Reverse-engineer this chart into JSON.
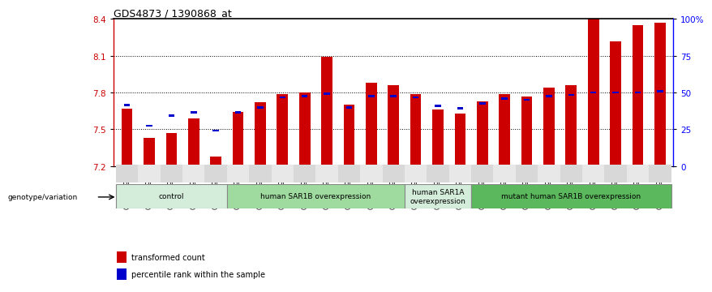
{
  "title": "GDS4873 / 1390868_at",
  "samples": [
    "GSM1279591",
    "GSM1279592",
    "GSM1279593",
    "GSM1279594",
    "GSM1279595",
    "GSM1279596",
    "GSM1279597",
    "GSM1279598",
    "GSM1279599",
    "GSM1279600",
    "GSM1279601",
    "GSM1279602",
    "GSM1279603",
    "GSM1279612",
    "GSM1279613",
    "GSM1279614",
    "GSM1279615",
    "GSM1279604",
    "GSM1279605",
    "GSM1279606",
    "GSM1279607",
    "GSM1279608",
    "GSM1279609",
    "GSM1279610",
    "GSM1279611"
  ],
  "red_values": [
    7.67,
    7.43,
    7.47,
    7.59,
    7.28,
    7.64,
    7.72,
    7.79,
    7.8,
    8.09,
    7.7,
    7.88,
    7.86,
    7.79,
    7.66,
    7.63,
    7.73,
    7.79,
    7.77,
    7.84,
    7.86,
    8.4,
    8.22,
    8.35,
    8.37
  ],
  "blue_values": [
    7.7,
    7.53,
    7.61,
    7.64,
    7.49,
    7.64,
    7.68,
    7.76,
    7.77,
    7.79,
    7.68,
    7.77,
    7.77,
    7.76,
    7.69,
    7.67,
    7.71,
    7.75,
    7.74,
    7.77,
    7.78,
    7.8,
    7.8,
    7.8,
    7.81
  ],
  "groups": [
    {
      "label": "control",
      "start": 0,
      "end": 4,
      "color": "#d4edda"
    },
    {
      "label": "human SAR1B overexpression",
      "start": 5,
      "end": 12,
      "color": "#9fdb9f"
    },
    {
      "label": "human SAR1A\noverexpression",
      "start": 13,
      "end": 15,
      "color": "#d4edda"
    },
    {
      "label": "mutant human SAR1B overexpression",
      "start": 16,
      "end": 24,
      "color": "#5cb85c"
    }
  ],
  "ymin": 7.2,
  "ymax": 8.4,
  "yticks": [
    7.2,
    7.5,
    7.8,
    8.1,
    8.4
  ],
  "right_yticks": [
    0,
    25,
    50,
    75,
    100
  ],
  "right_yticklabels": [
    "0",
    "25",
    "50",
    "75",
    "100%"
  ],
  "bar_color": "#cc0000",
  "blue_color": "#0000cc",
  "bg_color": "#ffffff",
  "genotype_label": "genotype/variation",
  "legend_red": "transformed count",
  "legend_blue": "percentile rank within the sample"
}
